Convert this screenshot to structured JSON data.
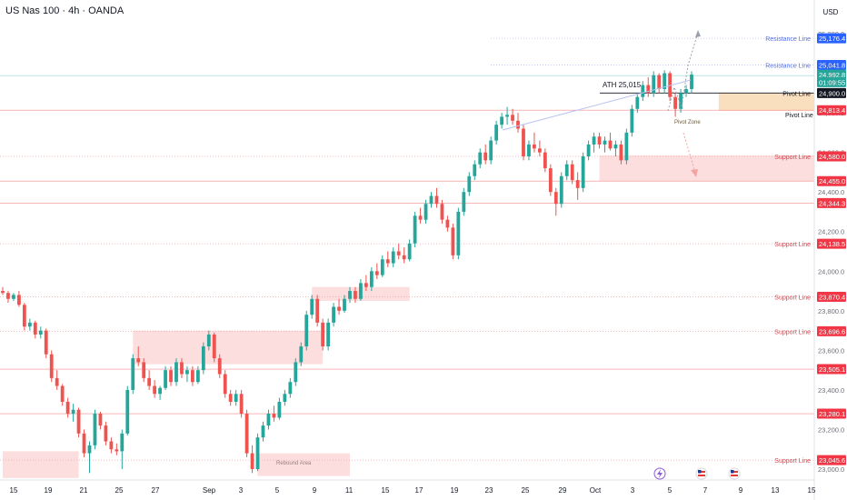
{
  "header": {
    "title": "US Nas 100 · 4h · OANDA",
    "currency": "USD"
  },
  "chart_data": {
    "type": "candlestick",
    "symbol": "US Nas 100",
    "timeframe": "4h",
    "source": "OANDA",
    "currency": "USD",
    "ylim": [
      22945,
      25370
    ],
    "x_ticks": [
      "15",
      "19",
      "21",
      "25",
      "27",
      "Sep",
      "3",
      "5",
      "9",
      "11",
      "15",
      "17",
      "19",
      "23",
      "25",
      "29",
      "Oct",
      "3",
      "5",
      "7",
      "9",
      "13",
      "15",
      "17"
    ],
    "y_ticks": [
      "25,200.0",
      "24,800.0",
      "24,600.0",
      "24,400.0",
      "24,200.0",
      "24,000.0",
      "23,800.0",
      "23,600.0",
      "23,400.0",
      "23,200.0",
      "23,000.0"
    ],
    "annotations": {
      "ath": "ATH  25,015",
      "pivot_line": "Pivot Line",
      "pivot_zone": "Pivot Zone",
      "rebound_area": "Rebound Area"
    },
    "levels": [
      {
        "label": "Resistance Line",
        "price": "25,397.3",
        "value": 25397.3,
        "kind": "resistance"
      },
      {
        "label": "Resistance Line",
        "price": "25,176.4",
        "value": 25176.4,
        "kind": "resistance"
      },
      {
        "label": "Resistance Line",
        "price": "25,041.8",
        "value": 25041.8,
        "kind": "resistance"
      },
      {
        "label": "",
        "price": "24,992.8",
        "value": 24992.8,
        "kind": "current"
      },
      {
        "label": "",
        "price": "01:09:55",
        "value": 24955.0,
        "kind": "timer"
      },
      {
        "label": "Pivot Line",
        "price": "24,900.0",
        "value": 24900.0,
        "kind": "pivot"
      },
      {
        "label": "",
        "price": "24,813.4",
        "value": 24813.4,
        "kind": "level"
      },
      {
        "label": "Support Line",
        "price": "24,580.0",
        "value": 24580.0,
        "kind": "support"
      },
      {
        "label": "",
        "price": "24,455.0",
        "value": 24455.0,
        "kind": "level"
      },
      {
        "label": "",
        "price": "24,344.3",
        "value": 24344.3,
        "kind": "level"
      },
      {
        "label": "Support Line",
        "price": "24,138.5",
        "value": 24138.5,
        "kind": "support"
      },
      {
        "label": "Support Line",
        "price": "23,870.4",
        "value": 23870.4,
        "kind": "support"
      },
      {
        "label": "Support Line",
        "price": "23,696.6",
        "value": 23696.6,
        "kind": "support"
      },
      {
        "label": "",
        "price": "23,505.1",
        "value": 23505.1,
        "kind": "level"
      },
      {
        "label": "",
        "price": "23,280.1",
        "value": 23280.1,
        "kind": "level"
      },
      {
        "label": "Support Line",
        "price": "23,045.6",
        "value": 23045.6,
        "kind": "support"
      }
    ],
    "zones": [
      {
        "from": 0,
        "to": 14,
        "low": 22955,
        "high": 23090,
        "kind": "support"
      },
      {
        "from": 24,
        "to": 59,
        "low": 23530,
        "high": 23700,
        "kind": "support"
      },
      {
        "from": 47,
        "to": 64,
        "low": 22965,
        "high": 23080,
        "kind": "rebound"
      },
      {
        "from": 57,
        "to": 75,
        "low": 23850,
        "high": 23920,
        "kind": "support"
      },
      {
        "from": 110,
        "to": 157,
        "low": 24455,
        "high": 24585,
        "kind": "support"
      },
      {
        "from": 132,
        "to": 153,
        "low": 24810,
        "high": 24900,
        "kind": "pivot"
      }
    ],
    "colors": {
      "up": "#26a69a",
      "down": "#ef5350",
      "support": "#f23645",
      "resistance": "#2962ff",
      "pivot_zone": "#f5c48a"
    },
    "candles": [
      [
        23900,
        23920,
        23880,
        23890
      ],
      [
        23890,
        23900,
        23840,
        23860
      ],
      [
        23860,
        23890,
        23850,
        23880
      ],
      [
        23880,
        23900,
        23820,
        23830
      ],
      [
        23830,
        23840,
        23700,
        23720
      ],
      [
        23720,
        23760,
        23700,
        23740
      ],
      [
        23740,
        23750,
        23660,
        23680
      ],
      [
        23680,
        23720,
        23660,
        23700
      ],
      [
        23700,
        23710,
        23560,
        23580
      ],
      [
        23580,
        23600,
        23440,
        23460
      ],
      [
        23460,
        23500,
        23400,
        23420
      ],
      [
        23420,
        23430,
        23320,
        23340
      ],
      [
        23340,
        23360,
        23260,
        23280
      ],
      [
        23280,
        23330,
        23240,
        23300
      ],
      [
        23300,
        23310,
        23160,
        23180
      ],
      [
        23180,
        23200,
        23060,
        23080
      ],
      [
        23080,
        23140,
        22980,
        23120
      ],
      [
        23120,
        23300,
        23100,
        23280
      ],
      [
        23280,
        23290,
        23200,
        23220
      ],
      [
        23220,
        23240,
        23120,
        23140
      ],
      [
        23140,
        23160,
        23080,
        23100
      ],
      [
        23100,
        23130,
        23070,
        23090
      ],
      [
        23090,
        23200,
        23000,
        23180
      ],
      [
        23180,
        23420,
        23170,
        23400
      ],
      [
        23400,
        23580,
        23380,
        23560
      ],
      [
        23560,
        23620,
        23520,
        23540
      ],
      [
        23540,
        23560,
        23440,
        23460
      ],
      [
        23460,
        23500,
        23400,
        23420
      ],
      [
        23420,
        23450,
        23360,
        23380
      ],
      [
        23380,
        23420,
        23350,
        23410
      ],
      [
        23410,
        23520,
        23400,
        23500
      ],
      [
        23500,
        23520,
        23420,
        23440
      ],
      [
        23440,
        23560,
        23420,
        23540
      ],
      [
        23540,
        23560,
        23460,
        23480
      ],
      [
        23480,
        23520,
        23440,
        23500
      ],
      [
        23500,
        23520,
        23420,
        23440
      ],
      [
        23440,
        23520,
        23430,
        23500
      ],
      [
        23500,
        23640,
        23480,
        23620
      ],
      [
        23620,
        23700,
        23600,
        23680
      ],
      [
        23680,
        23690,
        23540,
        23560
      ],
      [
        23560,
        23580,
        23460,
        23480
      ],
      [
        23480,
        23500,
        23360,
        23380
      ],
      [
        23380,
        23400,
        23320,
        23340
      ],
      [
        23340,
        23400,
        23320,
        23380
      ],
      [
        23380,
        23400,
        23260,
        23280
      ],
      [
        23280,
        23300,
        23060,
        23080
      ],
      [
        23080,
        23120,
        22980,
        23000
      ],
      [
        23000,
        23180,
        22990,
        23160
      ],
      [
        23160,
        23240,
        23140,
        23220
      ],
      [
        23220,
        23300,
        23200,
        23280
      ],
      [
        23280,
        23320,
        23240,
        23260
      ],
      [
        23260,
        23360,
        23250,
        23340
      ],
      [
        23340,
        23400,
        23320,
        23380
      ],
      [
        23380,
        23460,
        23360,
        23440
      ],
      [
        23440,
        23560,
        23420,
        23540
      ],
      [
        23540,
        23640,
        23520,
        23620
      ],
      [
        23620,
        23800,
        23600,
        23780
      ],
      [
        23780,
        23880,
        23760,
        23860
      ],
      [
        23860,
        23880,
        23720,
        23740
      ],
      [
        23740,
        23760,
        23600,
        23620
      ],
      [
        23620,
        23760,
        23600,
        23740
      ],
      [
        23740,
        23840,
        23720,
        23820
      ],
      [
        23820,
        23860,
        23780,
        23800
      ],
      [
        23800,
        23880,
        23790,
        23860
      ],
      [
        23860,
        23920,
        23840,
        23900
      ],
      [
        23900,
        23920,
        23840,
        23860
      ],
      [
        23860,
        23960,
        23850,
        23940
      ],
      [
        23940,
        23980,
        23900,
        23920
      ],
      [
        23920,
        24020,
        23900,
        24000
      ],
      [
        24000,
        24040,
        23960,
        23980
      ],
      [
        23980,
        24080,
        23970,
        24060
      ],
      [
        24060,
        24100,
        24020,
        24040
      ],
      [
        24040,
        24120,
        24020,
        24100
      ],
      [
        24100,
        24140,
        24060,
        24080
      ],
      [
        24080,
        24120,
        24040,
        24060
      ],
      [
        24060,
        24160,
        24050,
        24140
      ],
      [
        24140,
        24300,
        24120,
        24280
      ],
      [
        24280,
        24320,
        24240,
        24260
      ],
      [
        24260,
        24360,
        24240,
        24340
      ],
      [
        24340,
        24400,
        24320,
        24380
      ],
      [
        24380,
        24420,
        24320,
        24340
      ],
      [
        24340,
        24360,
        24240,
        24260
      ],
      [
        24260,
        24280,
        24200,
        24220
      ],
      [
        24220,
        24240,
        24060,
        24080
      ],
      [
        24080,
        24320,
        24060,
        24300
      ],
      [
        24300,
        24420,
        24280,
        24400
      ],
      [
        24400,
        24500,
        24380,
        24480
      ],
      [
        24480,
        24560,
        24460,
        24540
      ],
      [
        24540,
        24620,
        24520,
        24600
      ],
      [
        24600,
        24640,
        24540,
        24560
      ],
      [
        24560,
        24680,
        24540,
        24660
      ],
      [
        24660,
        24760,
        24640,
        24740
      ],
      [
        24740,
        24800,
        24720,
        24780
      ],
      [
        24780,
        24830,
        24740,
        24790
      ],
      [
        24790,
        24820,
        24740,
        24760
      ],
      [
        24760,
        24800,
        24700,
        24720
      ],
      [
        24720,
        24740,
        24560,
        24580
      ],
      [
        24580,
        24660,
        24560,
        24640
      ],
      [
        24640,
        24700,
        24600,
        24620
      ],
      [
        24620,
        24660,
        24580,
        24600
      ],
      [
        24600,
        24620,
        24500,
        24520
      ],
      [
        24520,
        24540,
        24380,
        24400
      ],
      [
        24400,
        24420,
        24280,
        24340
      ],
      [
        24340,
        24500,
        24320,
        24480
      ],
      [
        24480,
        24560,
        24460,
        24540
      ],
      [
        24540,
        24560,
        24440,
        24460
      ],
      [
        24460,
        24500,
        24360,
        24420
      ],
      [
        24420,
        24600,
        24400,
        24580
      ],
      [
        24580,
        24660,
        24560,
        24640
      ],
      [
        24640,
        24700,
        24600,
        24680
      ],
      [
        24680,
        24700,
        24620,
        24640
      ],
      [
        24640,
        24680,
        24600,
        24660
      ],
      [
        24660,
        24700,
        24610,
        24620
      ],
      [
        24620,
        24660,
        24580,
        24640
      ],
      [
        24640,
        24660,
        24540,
        24560
      ],
      [
        24560,
        24720,
        24540,
        24700
      ],
      [
        24700,
        24840,
        24680,
        24820
      ],
      [
        24820,
        24900,
        24800,
        24880
      ],
      [
        24880,
        24960,
        24860,
        24940
      ],
      [
        24940,
        24980,
        24880,
        24900
      ],
      [
        24900,
        25010,
        24880,
        24990
      ],
      [
        24990,
        25000,
        24900,
        24920
      ],
      [
        24920,
        25015,
        24900,
        25000
      ],
      [
        25000,
        25010,
        24860,
        24880
      ],
      [
        24880,
        24900,
        24780,
        24820
      ],
      [
        24820,
        24920,
        24800,
        24900
      ],
      [
        24900,
        24940,
        24880,
        24920
      ],
      [
        24920,
        25010,
        24900,
        24993
      ]
    ]
  }
}
